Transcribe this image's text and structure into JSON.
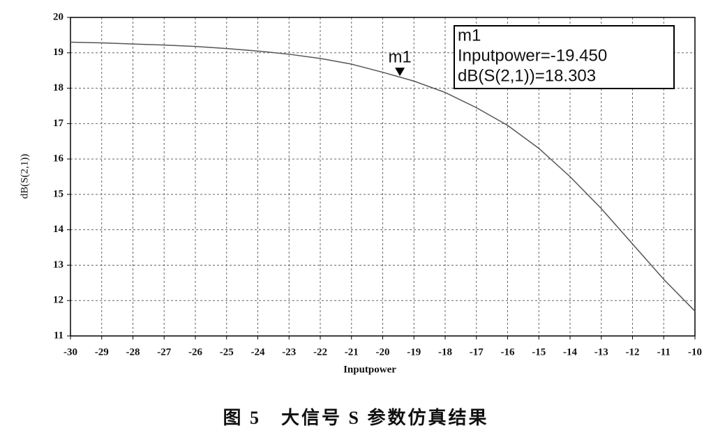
{
  "chart_data": {
    "type": "line",
    "xlabel": "Inputpower",
    "ylabel": "dB(S(2,1))",
    "caption": "图 5　大信号 S 参数仿真结果",
    "x": [
      -30,
      -29,
      -28,
      -27,
      -26,
      -25,
      -24,
      -23,
      -22,
      -21,
      -20,
      -19,
      -18,
      -17,
      -16,
      -15,
      -14,
      -13,
      -12,
      -11,
      -10
    ],
    "values": [
      19.3,
      19.28,
      19.25,
      19.22,
      19.18,
      19.12,
      19.05,
      18.96,
      18.84,
      18.68,
      18.45,
      18.2,
      17.88,
      17.45,
      16.95,
      16.3,
      15.5,
      14.6,
      13.6,
      12.6,
      11.7
    ],
    "color": "#555555",
    "xlim": [
      -30,
      -10
    ],
    "ylim": [
      11,
      20
    ],
    "xticks": [
      -30,
      -29,
      -28,
      -27,
      -26,
      -25,
      -24,
      -23,
      -22,
      -21,
      -20,
      -19,
      -18,
      -17,
      -16,
      -15,
      -14,
      -13,
      -12,
      -11,
      -10
    ],
    "yticks": [
      11,
      12,
      13,
      14,
      15,
      16,
      17,
      18,
      19,
      20
    ],
    "grid": true,
    "marker": {
      "name": "m1",
      "x": -19.45,
      "y": 18.303,
      "lines": [
        "Inputpower=-19.450",
        "dB(S(2,1))=18.303"
      ]
    }
  }
}
